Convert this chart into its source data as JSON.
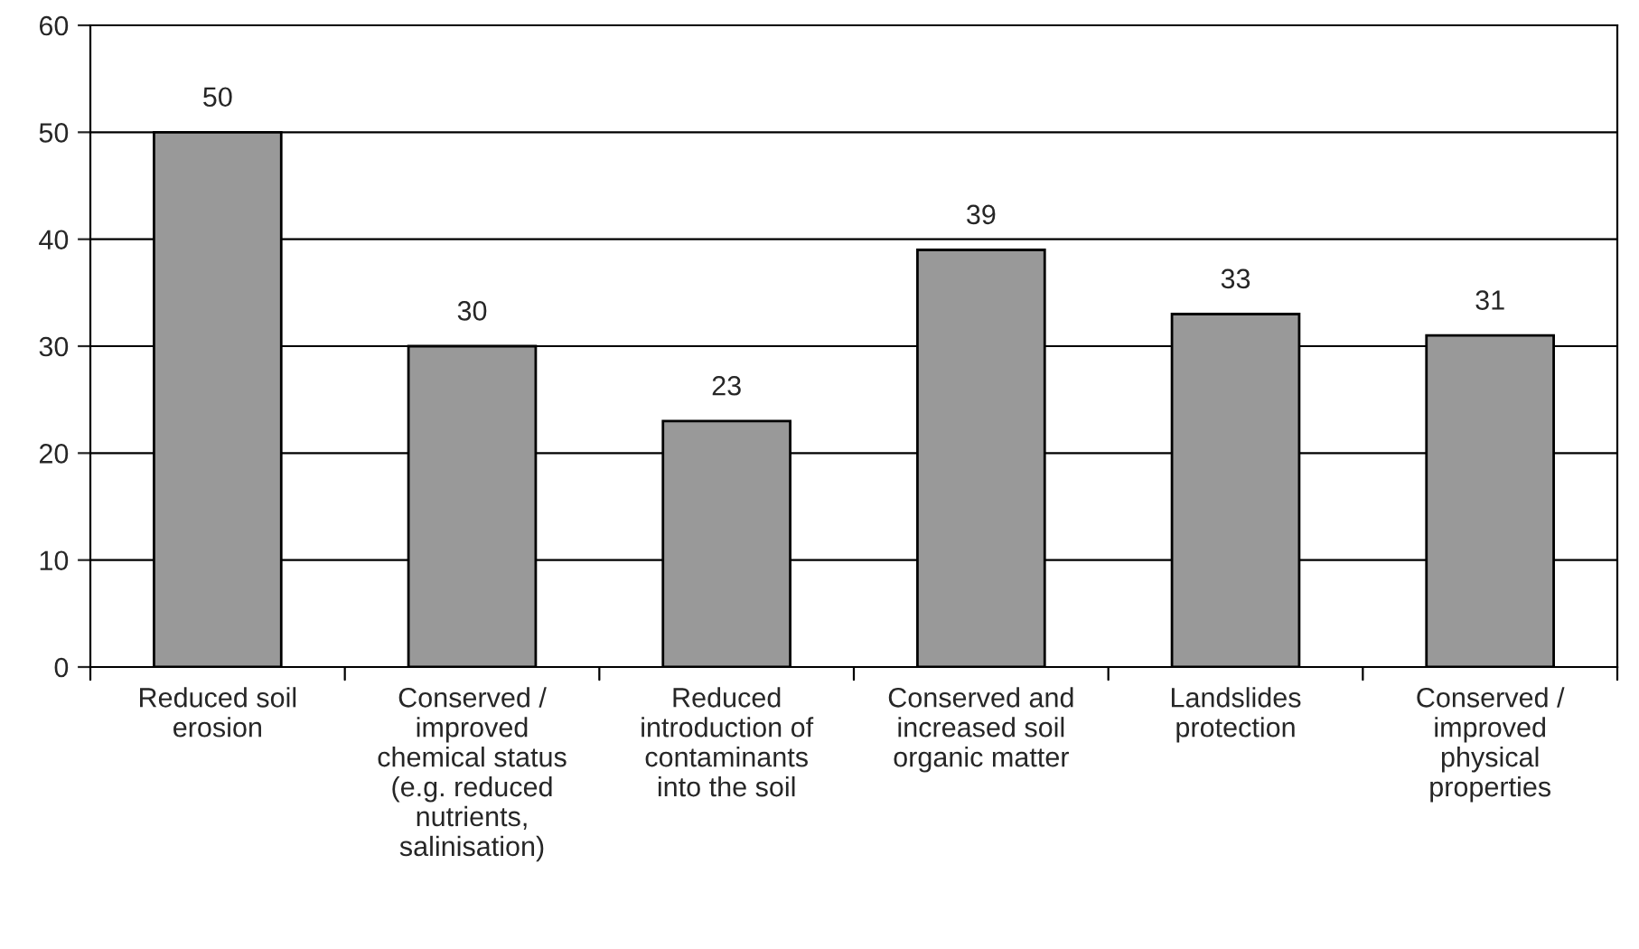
{
  "chart_data": {
    "type": "bar",
    "categories": [
      "Reduced soil\nerosion",
      "Conserved /\nimproved\nchemical status\n(e.g. reduced\nnutrients,\nsalinisation)",
      "Reduced\nintroduction of\ncontaminants\ninto the soil",
      "Conserved and\nincreased soil\norganic matter",
      "Landslides\nprotection",
      "Conserved /\nimproved\nphysical\nproperties"
    ],
    "values": [
      50,
      30,
      23,
      39,
      33,
      31
    ],
    "color": "#999999",
    "data_labels": true,
    "grid": "y",
    "ylim": [
      0,
      60
    ],
    "yticks": [
      0,
      10,
      20,
      30,
      40,
      50,
      60
    ]
  }
}
